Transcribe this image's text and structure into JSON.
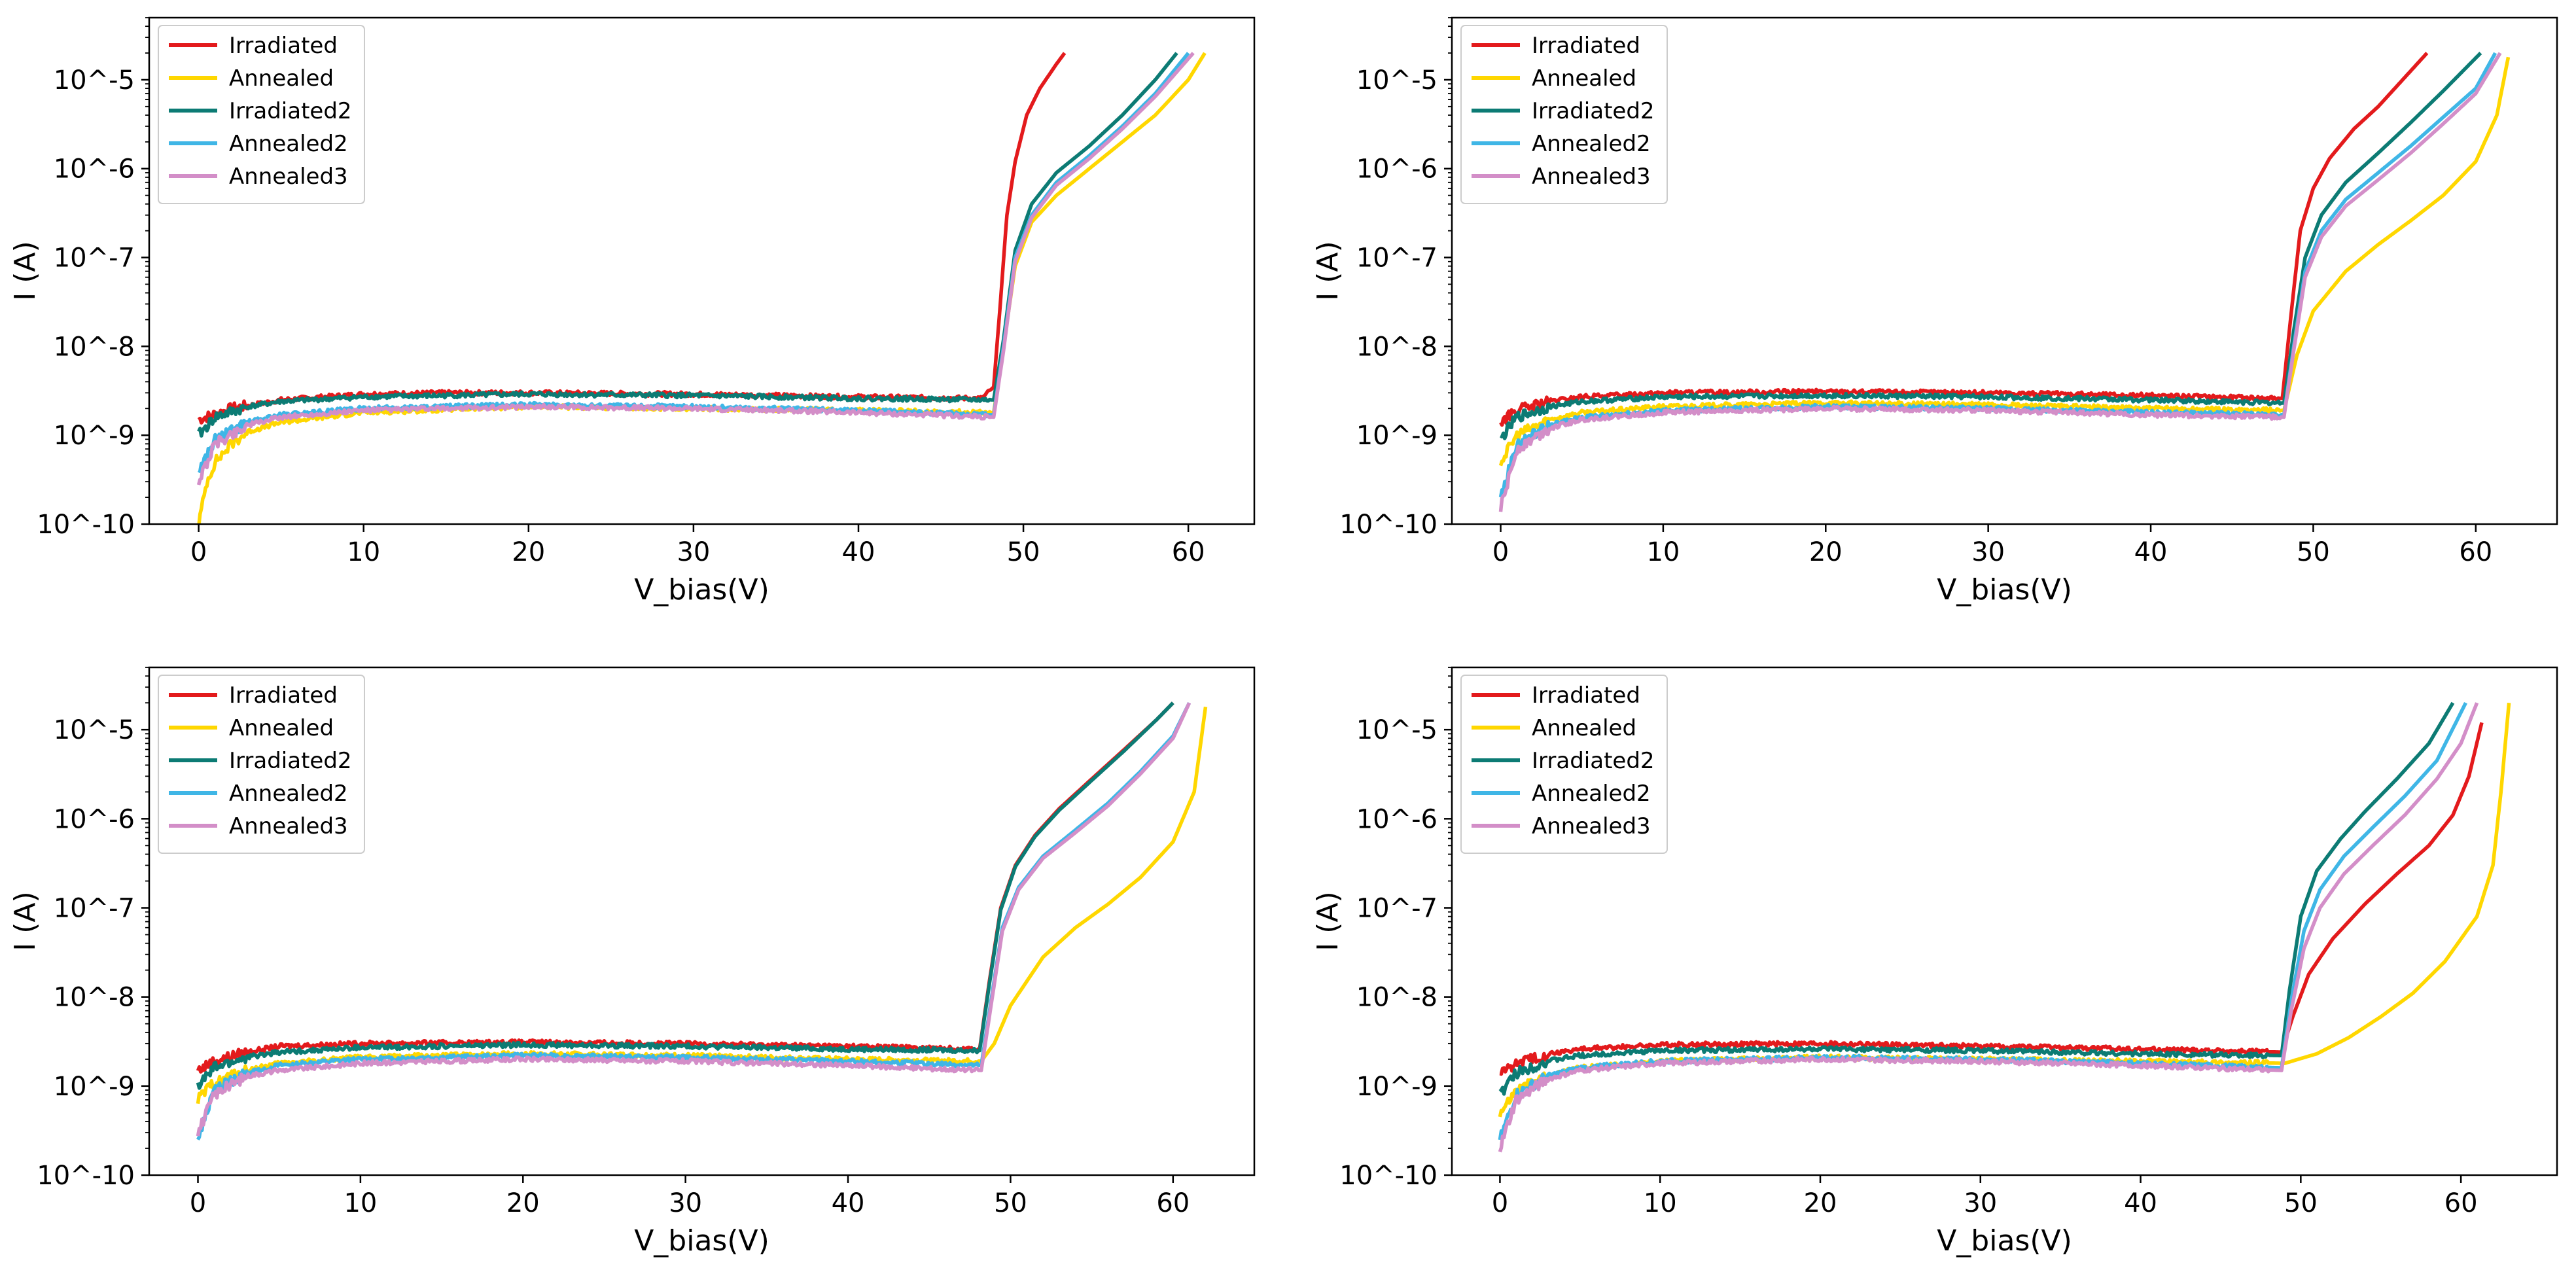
{
  "chart_data": [
    {
      "type": "line",
      "panel": "top-left",
      "xlabel": "V_bias(V)",
      "ylabel": "I (A)",
      "yscale": "log",
      "xlim": [
        -3,
        64
      ],
      "ylim": [
        1e-10,
        5e-05
      ],
      "xticks": [
        "0",
        "10",
        "20",
        "30",
        "40",
        "50",
        "60"
      ],
      "yticks": [
        "10^-10",
        "10^-9",
        "10^-8",
        "10^-7",
        "10^-6",
        "10^-5"
      ],
      "legend_position": "upper-left",
      "series": [
        {
          "name": "Irradiated",
          "color": "#e31a1c",
          "x": [
            0,
            2,
            5,
            10,
            15,
            20,
            30,
            40,
            47.5,
            48.2,
            48.6,
            49.0,
            49.5,
            50.2,
            51.0,
            52.0,
            52.5
          ],
          "y": [
            1.5e-09,
            2e-09,
            2.5e-09,
            2.9e-09,
            3e-09,
            3e-09,
            2.9e-09,
            2.7e-09,
            2.6e-09,
            3.5e-09,
            3e-08,
            3e-07,
            1.2e-06,
            4e-06,
            8e-06,
            1.5e-05,
            2e-05
          ]
        },
        {
          "name": "Annealed",
          "color": "#ffd700",
          "x": [
            0,
            0.5,
            1,
            2,
            3,
            5,
            10,
            20,
            30,
            40,
            48.2,
            48.8,
            49.5,
            50.5,
            52,
            54,
            56,
            58,
            60,
            61
          ],
          "y": [
            1e-10,
            3e-10,
            5e-10,
            8e-10,
            1.1e-09,
            1.4e-09,
            1.8e-09,
            2.1e-09,
            2e-09,
            1.9e-09,
            1.8e-09,
            1e-08,
            8e-08,
            2.5e-07,
            5e-07,
            1e-06,
            2e-06,
            4e-06,
            1e-05,
            2e-05
          ]
        },
        {
          "name": "Irradiated2",
          "color": "#0c7b74",
          "x": [
            0,
            1,
            3,
            5,
            10,
            20,
            30,
            40,
            48.2,
            48.8,
            49.5,
            50.5,
            52,
            54,
            56,
            58,
            59.3
          ],
          "y": [
            1e-09,
            1.6e-09,
            2.1e-09,
            2.4e-09,
            2.7e-09,
            2.9e-09,
            2.8e-09,
            2.6e-09,
            2.5e-09,
            1.2e-08,
            1.2e-07,
            4e-07,
            9e-07,
            1.8e-06,
            4e-06,
            1e-05,
            2e-05
          ]
        },
        {
          "name": "Annealed2",
          "color": "#3fb6e6",
          "x": [
            0,
            1,
            3,
            5,
            10,
            20,
            30,
            40,
            48.2,
            48.8,
            49.5,
            50.5,
            52,
            54,
            56,
            58,
            60
          ],
          "y": [
            4e-10,
            9e-10,
            1.4e-09,
            1.7e-09,
            2e-09,
            2.2e-09,
            2.1e-09,
            1.9e-09,
            1.7e-09,
            1e-08,
            1e-07,
            3e-07,
            7e-07,
            1.4e-06,
            3e-06,
            7e-06,
            2e-05
          ]
        },
        {
          "name": "Annealed3",
          "color": "#d38ec8",
          "x": [
            0,
            1,
            3,
            5,
            10,
            20,
            30,
            40,
            48.2,
            48.8,
            49.5,
            50.5,
            52,
            54,
            56,
            58,
            60.3
          ],
          "y": [
            3e-10,
            8e-10,
            1.3e-09,
            1.6e-09,
            1.9e-09,
            2.1e-09,
            2e-09,
            1.8e-09,
            1.6e-09,
            9e-09,
            9e-08,
            2.8e-07,
            6.5e-07,
            1.3e-06,
            2.8e-06,
            6.5e-06,
            2e-05
          ]
        }
      ]
    },
    {
      "type": "line",
      "panel": "top-right",
      "xlabel": "V_bias(V)",
      "ylabel": "I (A)",
      "yscale": "log",
      "xlim": [
        -3,
        65
      ],
      "ylim": [
        1e-10,
        5e-05
      ],
      "xticks": [
        "0",
        "10",
        "20",
        "30",
        "40",
        "50",
        "60"
      ],
      "yticks": [
        "10^-10",
        "10^-9",
        "10^-8",
        "10^-7",
        "10^-6",
        "10^-5"
      ],
      "legend_position": "upper-left",
      "series": [
        {
          "name": "Irradiated",
          "color": "#e31a1c",
          "x": [
            0,
            1,
            3,
            5,
            10,
            20,
            30,
            40,
            48.1,
            48.6,
            49.2,
            50,
            51,
            52.5,
            54,
            55.5,
            57
          ],
          "y": [
            1.4e-09,
            1.9e-09,
            2.4e-09,
            2.7e-09,
            3e-09,
            3.1e-09,
            3e-09,
            2.8e-09,
            2.6e-09,
            2e-08,
            2e-07,
            6e-07,
            1.3e-06,
            2.8e-06,
            5e-06,
            1e-05,
            2e-05
          ]
        },
        {
          "name": "Annealed",
          "color": "#ffd700",
          "x": [
            0,
            1,
            3,
            5,
            10,
            20,
            30,
            40,
            48.2,
            49,
            50,
            52,
            54,
            56,
            58,
            60,
            61.3,
            62
          ],
          "y": [
            5e-10,
            1e-09,
            1.5e-09,
            1.8e-09,
            2.1e-09,
            2.3e-09,
            2.2e-09,
            2e-09,
            1.9e-09,
            8e-09,
            2.5e-08,
            7e-08,
            1.4e-07,
            2.6e-07,
            5e-07,
            1.2e-06,
            4e-06,
            1.8e-05
          ]
        },
        {
          "name": "Irradiated2",
          "color": "#0c7b74",
          "x": [
            0,
            1,
            3,
            5,
            10,
            20,
            30,
            40,
            48.2,
            48.8,
            49.5,
            50.5,
            52,
            54,
            56,
            58,
            60.3
          ],
          "y": [
            9e-10,
            1.6e-09,
            2.1e-09,
            2.4e-09,
            2.7e-09,
            2.8e-09,
            2.7e-09,
            2.5e-09,
            2.3e-09,
            1.5e-08,
            1e-07,
            3e-07,
            7e-07,
            1.5e-06,
            3.3e-06,
            7.5e-06,
            2e-05
          ]
        },
        {
          "name": "Annealed2",
          "color": "#3fb6e6",
          "x": [
            0,
            1,
            3,
            5,
            10,
            20,
            30,
            40,
            48.2,
            48.8,
            49.5,
            50.5,
            52,
            54,
            56,
            58,
            60,
            61.2
          ],
          "y": [
            2e-10,
            8e-10,
            1.3e-09,
            1.6e-09,
            1.9e-09,
            2.1e-09,
            2e-09,
            1.8e-09,
            1.7e-09,
            1e-08,
            7e-08,
            2e-07,
            4.5e-07,
            9e-07,
            1.8e-06,
            3.8e-06,
            8e-06,
            2e-05
          ]
        },
        {
          "name": "Annealed3",
          "color": "#d38ec8",
          "x": [
            0,
            1,
            3,
            5,
            10,
            20,
            30,
            40,
            48.2,
            48.8,
            49.5,
            50.5,
            52,
            54,
            56,
            58,
            60,
            61.5
          ],
          "y": [
            1.5e-10,
            7e-10,
            1.2e-09,
            1.5e-09,
            1.8e-09,
            2e-09,
            1.9e-09,
            1.7e-09,
            1.6e-09,
            9e-09,
            6e-08,
            1.7e-07,
            3.8e-07,
            7.5e-07,
            1.5e-06,
            3.2e-06,
            7e-06,
            2e-05
          ]
        }
      ]
    },
    {
      "type": "line",
      "panel": "bottom-left",
      "xlabel": "V_bias(V)",
      "ylabel": "I (A)",
      "yscale": "log",
      "xlim": [
        -3,
        65
      ],
      "ylim": [
        1e-10,
        5e-05
      ],
      "xticks": [
        "0",
        "10",
        "20",
        "30",
        "40",
        "50",
        "60"
      ],
      "yticks": [
        "10^-10",
        "10^-9",
        "10^-8",
        "10^-7",
        "10^-6",
        "10^-5"
      ],
      "legend_position": "upper-left",
      "series": [
        {
          "name": "Irradiated",
          "color": "#e31a1c",
          "x": [
            0,
            1,
            3,
            5,
            10,
            20,
            30,
            40,
            48.1,
            48.7,
            49.4,
            50.3,
            51.5,
            53,
            55,
            57,
            59,
            60
          ],
          "y": [
            1.5e-09,
            1.9e-09,
            2.4e-09,
            2.8e-09,
            3e-09,
            3.1e-09,
            3e-09,
            2.8e-09,
            2.6e-09,
            1.5e-08,
            1e-07,
            3e-07,
            6.5e-07,
            1.3e-06,
            2.8e-06,
            6e-06,
            1.3e-05,
            2e-05
          ]
        },
        {
          "name": "Annealed",
          "color": "#ffd700",
          "x": [
            0,
            1,
            3,
            5,
            10,
            20,
            30,
            40,
            48.2,
            49,
            50,
            52,
            54,
            56,
            58,
            60,
            61.3,
            62
          ],
          "y": [
            7e-10,
            1.1e-09,
            1.5e-09,
            1.8e-09,
            2.1e-09,
            2.3e-09,
            2.2e-09,
            2e-09,
            1.9e-09,
            3e-09,
            8e-09,
            2.8e-08,
            6e-08,
            1.1e-07,
            2.2e-07,
            5.5e-07,
            2e-06,
            1.8e-05
          ]
        },
        {
          "name": "Irradiated2",
          "color": "#0c7b74",
          "x": [
            0,
            1,
            3,
            5,
            10,
            20,
            30,
            40,
            48.1,
            48.7,
            49.4,
            50.3,
            51.5,
            53,
            55,
            57,
            59,
            60
          ],
          "y": [
            1e-09,
            1.6e-09,
            2.1e-09,
            2.4e-09,
            2.7e-09,
            2.9e-09,
            2.8e-09,
            2.6e-09,
            2.5e-09,
            1.4e-08,
            9.5e-08,
            2.9e-07,
            6.3e-07,
            1.25e-06,
            2.7e-06,
            5.8e-06,
            1.3e-05,
            2e-05
          ]
        },
        {
          "name": "Annealed2",
          "color": "#3fb6e6",
          "x": [
            0,
            1,
            3,
            5,
            10,
            20,
            30,
            40,
            48.2,
            48.8,
            49.5,
            50.5,
            52,
            54,
            56,
            58,
            60,
            61
          ],
          "y": [
            2.5e-10,
            9e-10,
            1.4e-09,
            1.7e-09,
            2e-09,
            2.2e-09,
            2.1e-09,
            1.9e-09,
            1.7e-09,
            9e-09,
            6e-08,
            1.7e-07,
            3.8e-07,
            7.5e-07,
            1.5e-06,
            3.4e-06,
            8.5e-06,
            2e-05
          ]
        },
        {
          "name": "Annealed3",
          "color": "#d38ec8",
          "x": [
            0,
            1,
            3,
            5,
            10,
            20,
            30,
            40,
            48.2,
            48.8,
            49.5,
            50.5,
            52,
            54,
            56,
            58,
            60,
            61
          ],
          "y": [
            3e-10,
            8e-10,
            1.3e-09,
            1.5e-09,
            1.8e-09,
            2e-09,
            1.9e-09,
            1.7e-09,
            1.5e-09,
            8e-09,
            5.5e-08,
            1.6e-07,
            3.6e-07,
            7e-07,
            1.4e-06,
            3.2e-06,
            8e-06,
            2e-05
          ]
        }
      ]
    },
    {
      "type": "line",
      "panel": "bottom-right",
      "xlabel": "V_bias(V)",
      "ylabel": "I (A)",
      "yscale": "log",
      "xlim": [
        -3,
        66
      ],
      "ylim": [
        1e-10,
        5e-05
      ],
      "xticks": [
        "0",
        "10",
        "20",
        "30",
        "40",
        "50",
        "60"
      ],
      "yticks": [
        "10^-10",
        "10^-9",
        "10^-8",
        "10^-7",
        "10^-6",
        "10^-5"
      ],
      "legend_position": "upper-left",
      "series": [
        {
          "name": "Irradiated",
          "color": "#e31a1c",
          "x": [
            0,
            1,
            3,
            5,
            10,
            20,
            30,
            40,
            48.8,
            49.5,
            50.5,
            52,
            54,
            56,
            58,
            59.5,
            60.5,
            61.3
          ],
          "y": [
            1.4e-09,
            1.8e-09,
            2.3e-09,
            2.6e-09,
            2.9e-09,
            3e-09,
            2.8e-09,
            2.6e-09,
            2.4e-09,
            6e-09,
            1.8e-08,
            4.5e-08,
            1.1e-07,
            2.4e-07,
            5e-07,
            1.1e-06,
            3e-06,
            1.2e-05
          ]
        },
        {
          "name": "Annealed",
          "color": "#ffd700",
          "x": [
            0,
            1,
            3,
            5,
            10,
            20,
            30,
            40,
            49,
            51,
            53,
            55,
            57,
            59,
            61,
            62,
            62.5,
            63
          ],
          "y": [
            5e-10,
            9e-10,
            1.3e-09,
            1.6e-09,
            1.9e-09,
            2.1e-09,
            2e-09,
            1.9e-09,
            1.8e-09,
            2.3e-09,
            3.5e-09,
            6e-09,
            1.1e-08,
            2.5e-08,
            8e-08,
            3e-07,
            2e-06,
            2e-05
          ]
        },
        {
          "name": "Irradiated2",
          "color": "#0c7b74",
          "x": [
            0,
            1,
            3,
            5,
            10,
            20,
            30,
            40,
            48.8,
            49.3,
            50,
            51,
            52.5,
            54,
            56,
            58,
            59.5
          ],
          "y": [
            8e-10,
            1.4e-09,
            1.9e-09,
            2.2e-09,
            2.5e-09,
            2.6e-09,
            2.5e-09,
            2.3e-09,
            2.2e-09,
            1.2e-08,
            8e-08,
            2.6e-07,
            6e-07,
            1.2e-06,
            2.8e-06,
            7e-06,
            2e-05
          ]
        },
        {
          "name": "Annealed2",
          "color": "#3fb6e6",
          "x": [
            0,
            1,
            3,
            5,
            10,
            20,
            30,
            40,
            48.8,
            49.4,
            50.2,
            51.2,
            52.7,
            54.5,
            56.5,
            58.5,
            60.3
          ],
          "y": [
            2.5e-10,
            8e-10,
            1.3e-09,
            1.6e-09,
            1.9e-09,
            2.1e-09,
            2e-09,
            1.8e-09,
            1.6e-09,
            9e-09,
            5.5e-08,
            1.6e-07,
            3.8e-07,
            8e-07,
            1.8e-06,
            4.5e-06,
            2e-05
          ]
        },
        {
          "name": "Annealed3",
          "color": "#d38ec8",
          "x": [
            0,
            1,
            3,
            5,
            10,
            20,
            30,
            40,
            48.8,
            49.4,
            50.2,
            51.2,
            52.7,
            54.5,
            56.5,
            58.5,
            60,
            61
          ],
          "y": [
            2e-10,
            7e-10,
            1.2e-09,
            1.5e-09,
            1.8e-09,
            2e-09,
            1.9e-09,
            1.7e-09,
            1.5e-09,
            7e-09,
            3.5e-08,
            1e-07,
            2.4e-07,
            5e-07,
            1.1e-06,
            2.8e-06,
            7e-06,
            2e-05
          ]
        }
      ]
    }
  ]
}
